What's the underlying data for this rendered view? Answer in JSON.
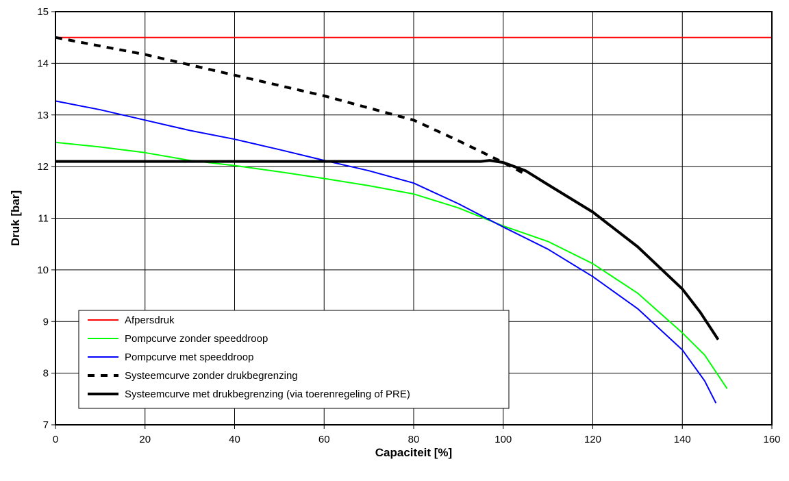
{
  "chart_data": {
    "type": "line",
    "title": "",
    "xlabel": "Capaciteit [%]",
    "ylabel": "Druk [bar]",
    "xlim": [
      0,
      160
    ],
    "ylim": [
      7,
      15
    ],
    "xticks": [
      0,
      20,
      40,
      60,
      80,
      100,
      120,
      140,
      160
    ],
    "yticks": [
      7,
      8,
      9,
      10,
      11,
      12,
      13,
      14,
      15
    ],
    "grid": true,
    "legend_position": "bottom-left",
    "series": [
      {
        "name": "Afpersdruk",
        "color": "#ff0000",
        "style": "solid",
        "points": [
          [
            0,
            14.5
          ],
          [
            160,
            14.5
          ]
        ]
      },
      {
        "name": "Pompcurve zonder speeddroop",
        "color": "#00ff00",
        "style": "solid",
        "points": [
          [
            0,
            12.47
          ],
          [
            10,
            12.38
          ],
          [
            20,
            12.27
          ],
          [
            30,
            12.12
          ],
          [
            40,
            12.02
          ],
          [
            50,
            11.9
          ],
          [
            60,
            11.77
          ],
          [
            70,
            11.63
          ],
          [
            80,
            11.47
          ],
          [
            90,
            11.2
          ],
          [
            100,
            10.85
          ],
          [
            110,
            10.55
          ],
          [
            120,
            10.12
          ],
          [
            130,
            9.55
          ],
          [
            140,
            8.78
          ],
          [
            145,
            8.35
          ],
          [
            150,
            7.7
          ]
        ]
      },
      {
        "name": "Pompcurve met speeddroop",
        "color": "#0000ff",
        "style": "solid",
        "points": [
          [
            0,
            13.27
          ],
          [
            10,
            13.1
          ],
          [
            20,
            12.9
          ],
          [
            30,
            12.7
          ],
          [
            40,
            12.53
          ],
          [
            50,
            12.33
          ],
          [
            60,
            12.12
          ],
          [
            70,
            11.92
          ],
          [
            80,
            11.68
          ],
          [
            90,
            11.28
          ],
          [
            100,
            10.83
          ],
          [
            110,
            10.4
          ],
          [
            120,
            9.87
          ],
          [
            130,
            9.25
          ],
          [
            140,
            8.45
          ],
          [
            145,
            7.85
          ],
          [
            147.5,
            7.42
          ]
        ]
      },
      {
        "name": "Systeemcurve zonder drukbegrenzing",
        "color": "#000000",
        "style": "dashed",
        "points": [
          [
            0,
            14.5
          ],
          [
            20,
            14.17
          ],
          [
            40,
            13.77
          ],
          [
            60,
            13.37
          ],
          [
            80,
            12.9
          ],
          [
            90,
            12.5
          ],
          [
            100,
            12.08
          ],
          [
            105,
            11.85
          ]
        ]
      },
      {
        "name": "Systeemcurve met drukbegrenzing (via toerenregeling of PRE)",
        "color": "#000000",
        "style": "solid-thick",
        "points": [
          [
            0,
            12.1
          ],
          [
            95,
            12.1
          ],
          [
            97,
            12.12
          ],
          [
            100,
            12.08
          ],
          [
            105,
            11.92
          ],
          [
            110,
            11.65
          ],
          [
            120,
            11.12
          ],
          [
            130,
            10.45
          ],
          [
            140,
            9.63
          ],
          [
            144,
            9.18
          ],
          [
            148,
            8.65
          ]
        ]
      }
    ]
  }
}
